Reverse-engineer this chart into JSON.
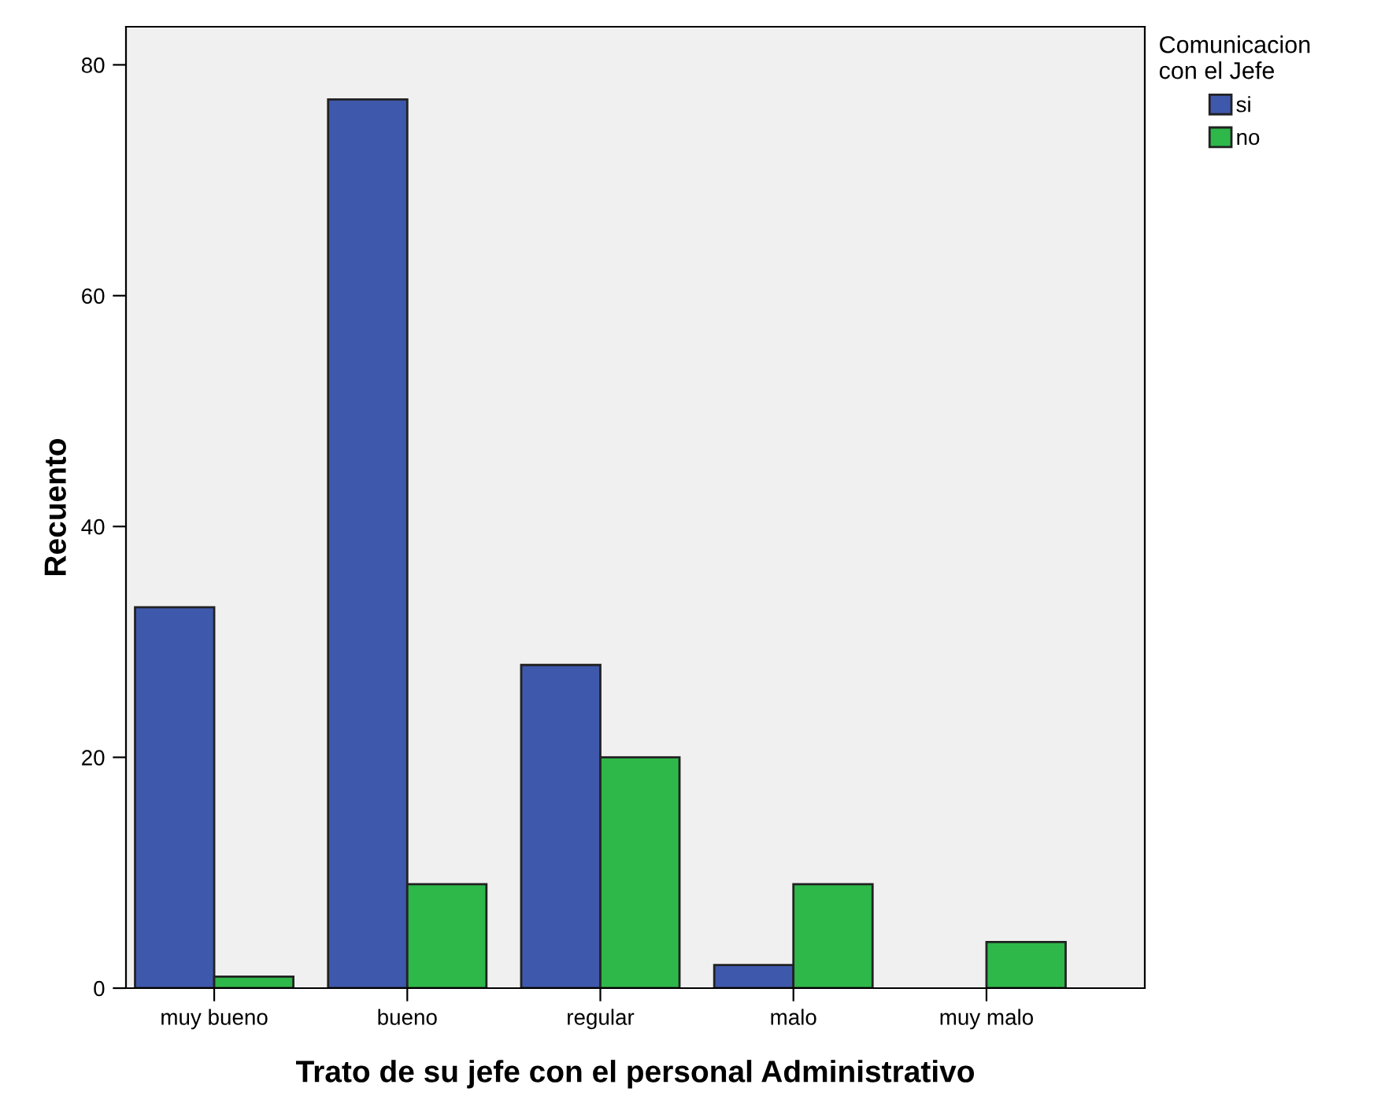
{
  "chart_data": {
    "type": "bar",
    "xlabel": "Trato de su jefe con el personal Administrativo",
    "ylabel": "Recuento",
    "legend_title": "Comunicacion\ncon el Jefe",
    "categories": [
      "muy bueno",
      "bueno",
      "regular",
      "malo",
      "muy malo"
    ],
    "series": [
      {
        "name": "si",
        "color": "#3e58ac",
        "values": [
          33,
          77,
          28,
          2,
          0
        ]
      },
      {
        "name": "no",
        "color": "#2eb84a",
        "values": [
          1,
          9,
          20,
          9,
          4
        ]
      }
    ],
    "ylim": [
      0,
      83.3
    ],
    "yticks": [
      0,
      20,
      40,
      60,
      80
    ],
    "grid": false,
    "legend": "top right"
  }
}
